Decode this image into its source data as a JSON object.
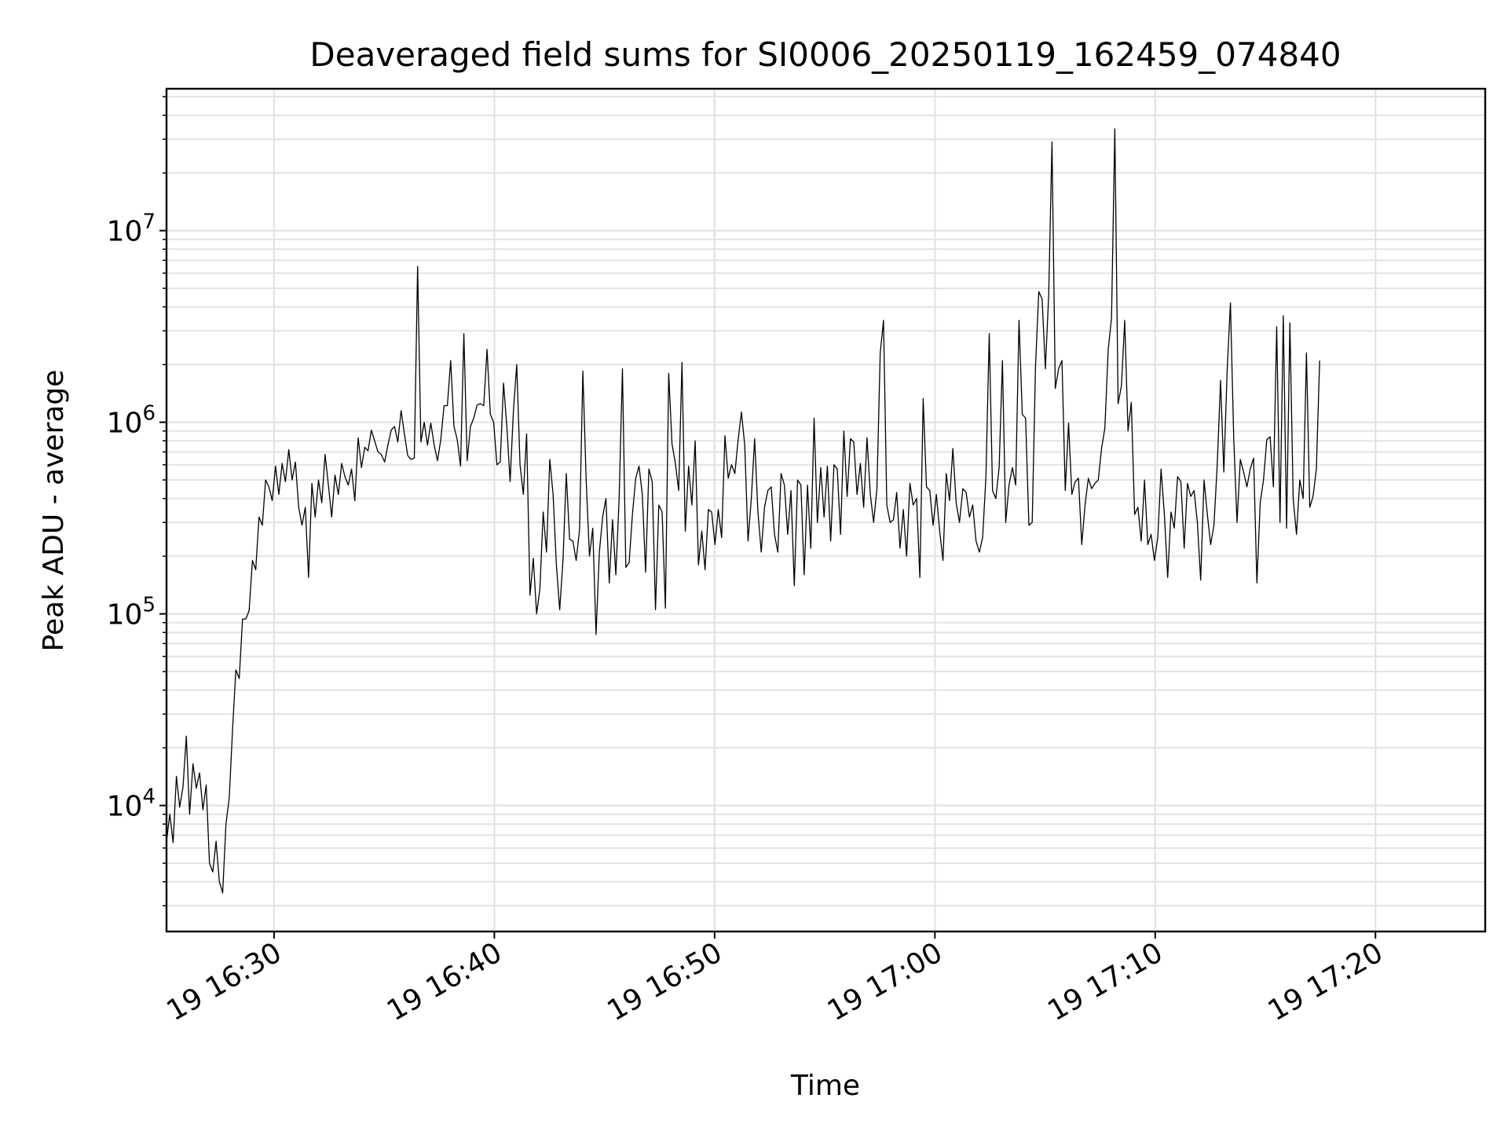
{
  "chart_data": {
    "type": "line",
    "title": "Deaveraged field sums for SI0006_20250119_162459_074840",
    "xlabel": "Time",
    "ylabel": "Peak ADU - average",
    "yscale": "log",
    "grid": true,
    "line_color": "#000000",
    "grid_color": "#e3e3e3",
    "xlim": [
      "2025-01-19 16:25:07",
      "2025-01-19 17:24:59"
    ],
    "ylim": [
      2200,
      55000000
    ],
    "x_ticks": [
      {
        "time": "2025-01-19 16:30",
        "label": "19 16:30"
      },
      {
        "time": "2025-01-19 16:40",
        "label": "19 16:40"
      },
      {
        "time": "2025-01-19 16:50",
        "label": "19 16:50"
      },
      {
        "time": "2025-01-19 17:00",
        "label": "19 17:00"
      },
      {
        "time": "2025-01-19 17:10",
        "label": "19 17:10"
      },
      {
        "time": "2025-01-19 17:20",
        "label": "19 17:20"
      }
    ],
    "y_ticks": [
      {
        "value": 10000,
        "base": "10",
        "exp": "4"
      },
      {
        "value": 100000,
        "base": "10",
        "exp": "5"
      },
      {
        "value": 1000000,
        "base": "10",
        "exp": "6"
      },
      {
        "value": 10000000,
        "base": "10",
        "exp": "7"
      }
    ],
    "series": [
      {
        "x_start": "2025-01-19 16:25:07",
        "x_step_seconds": 9,
        "values": [
          6500,
          9000,
          6400,
          14200,
          9800,
          12500,
          23000,
          9000,
          16500,
          12300,
          14800,
          9500,
          12800,
          5000,
          4500,
          6500,
          4000,
          3500,
          8000,
          11000,
          25000,
          51000,
          46000,
          94000,
          94000,
          104000,
          190000,
          170000,
          320000,
          290000,
          500000,
          460000,
          390000,
          590000,
          420000,
          610000,
          490000,
          720000,
          500000,
          620000,
          360000,
          290000,
          360000,
          155000,
          480000,
          320000,
          500000,
          380000,
          680000,
          470000,
          320000,
          530000,
          420000,
          610000,
          520000,
          470000,
          570000,
          390000,
          830000,
          580000,
          740000,
          710000,
          910000,
          800000,
          700000,
          680000,
          620000,
          760000,
          910000,
          950000,
          790000,
          1150000,
          870000,
          670000,
          640000,
          650000,
          6500000,
          790000,
          1000000,
          760000,
          990000,
          760000,
          630000,
          810000,
          1220000,
          1220000,
          2100000,
          950000,
          810000,
          590000,
          2900000,
          630000,
          950000,
          1050000,
          1230000,
          1250000,
          1220000,
          2400000,
          1100000,
          1000000,
          600000,
          620000,
          1600000,
          950000,
          490000,
          1150000,
          2000000,
          600000,
          420000,
          870000,
          125000,
          195000,
          100000,
          135000,
          340000,
          210000,
          640000,
          420000,
          180000,
          105000,
          190000,
          540000,
          245000,
          240000,
          190000,
          275000,
          1850000,
          500000,
          200000,
          280000,
          78000,
          210000,
          320000,
          400000,
          145000,
          310000,
          160000,
          400000,
          1900000,
          175000,
          185000,
          330000,
          510000,
          590000,
          420000,
          165000,
          570000,
          490000,
          105000,
          370000,
          340000,
          107000,
          1800000,
          770000,
          610000,
          440000,
          2050000,
          270000,
          590000,
          370000,
          800000,
          180000,
          270000,
          170000,
          350000,
          340000,
          230000,
          350000,
          250000,
          850000,
          510000,
          600000,
          540000,
          810000,
          1130000,
          760000,
          240000,
          400000,
          820000,
          340000,
          210000,
          360000,
          440000,
          460000,
          260000,
          210000,
          540000,
          470000,
          260000,
          440000,
          140000,
          500000,
          470000,
          160000,
          470000,
          220000,
          1050000,
          300000,
          580000,
          320000,
          590000,
          240000,
          600000,
          570000,
          260000,
          900000,
          410000,
          820000,
          790000,
          420000,
          610000,
          360000,
          830000,
          420000,
          300000,
          450000,
          2300000,
          3400000,
          370000,
          300000,
          310000,
          430000,
          220000,
          350000,
          200000,
          480000,
          370000,
          400000,
          155000,
          1330000,
          460000,
          440000,
          290000,
          420000,
          270000,
          190000,
          540000,
          390000,
          730000,
          380000,
          300000,
          450000,
          430000,
          320000,
          370000,
          240000,
          210000,
          250000,
          520000,
          2900000,
          440000,
          400000,
          580000,
          2100000,
          300000,
          470000,
          580000,
          470000,
          3400000,
          1100000,
          1050000,
          290000,
          300000,
          1950000,
          4800000,
          4400000,
          1900000,
          4600000,
          29000000,
          1500000,
          1900000,
          2100000,
          440000,
          990000,
          420000,
          490000,
          510000,
          230000,
          370000,
          510000,
          450000,
          480000,
          500000,
          730000,
          930000,
          2400000,
          3500000,
          34000000,
          1250000,
          1550000,
          3400000,
          900000,
          1270000,
          330000,
          360000,
          240000,
          500000,
          230000,
          260000,
          190000,
          250000,
          570000,
          330000,
          155000,
          340000,
          280000,
          520000,
          490000,
          220000,
          480000,
          410000,
          440000,
          300000,
          150000,
          500000,
          330000,
          230000,
          290000,
          600000,
          1650000,
          550000,
          1850000,
          4200000,
          820000,
          300000,
          640000,
          550000,
          460000,
          570000,
          650000,
          145000,
          380000,
          500000,
          810000,
          840000,
          460000,
          3150000,
          300000,
          3600000,
          280000,
          3300000,
          400000,
          260000,
          500000,
          400000,
          2300000,
          360000,
          410000,
          570000,
          2100000
        ]
      }
    ]
  }
}
